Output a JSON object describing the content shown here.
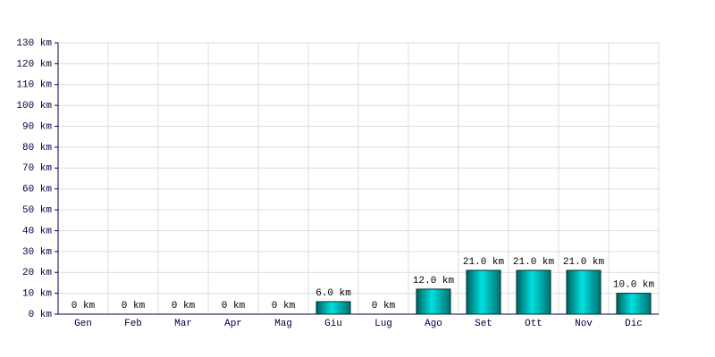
{
  "chart_data": {
    "type": "bar",
    "categories": [
      "Gen",
      "Feb",
      "Mar",
      "Apr",
      "Mag",
      "Giu",
      "Lug",
      "Ago",
      "Set",
      "Ott",
      "Nov",
      "Dic"
    ],
    "values": [
      0,
      0,
      0,
      0,
      0,
      6,
      0,
      12,
      21,
      21,
      21,
      10
    ],
    "value_labels": [
      "0 km",
      "0 km",
      "0 km",
      "0 km",
      "0 km",
      "6.0 km",
      "0 km",
      "12.0 km",
      "21.0 km",
      "21.0 km",
      "21.0 km",
      "10.0 km"
    ],
    "color": "#00e0e0",
    "ylim": [
      0,
      130
    ],
    "yticks": [
      {
        "value": 0,
        "label": "0 km"
      },
      {
        "value": 10,
        "label": "10 km"
      },
      {
        "value": 20,
        "label": "20 km"
      },
      {
        "value": 30,
        "label": "30 km"
      },
      {
        "value": 40,
        "label": "40 km"
      },
      {
        "value": 50,
        "label": "50 km"
      },
      {
        "value": 60,
        "label": "60 km"
      },
      {
        "value": 70,
        "label": "70 km"
      },
      {
        "value": 80,
        "label": "80 km"
      },
      {
        "value": 90,
        "label": "90 km"
      },
      {
        "value": 100,
        "label": "100 km"
      },
      {
        "value": 110,
        "label": "110 km"
      },
      {
        "value": 120,
        "label": "120 km"
      },
      {
        "value": 130,
        "label": "130 km"
      }
    ],
    "grid": true
  }
}
